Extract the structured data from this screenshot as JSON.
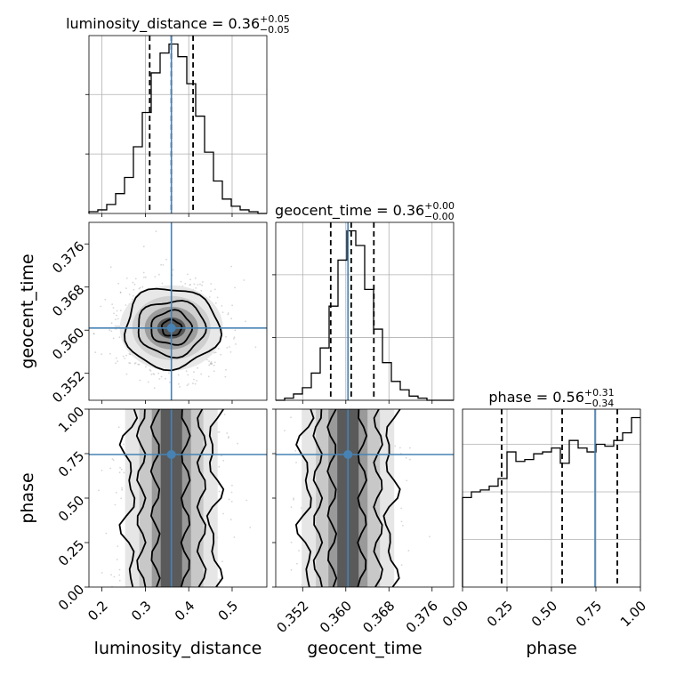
{
  "chart_data": {
    "type": "corner",
    "colors": {
      "truth": "#4682b4",
      "line": "#000000",
      "grid": "#b0b0b0"
    },
    "parameters": [
      {
        "name": "luminosity_distance",
        "title": {
          "prefix": "luminosity_distance = 0.36",
          "plus": "+0.05",
          "minus": "−0.05"
        },
        "range": [
          0.17,
          0.58
        ],
        "ticks": [
          0.2,
          0.3,
          0.4,
          0.5
        ],
        "tick_labels": [
          "0.2",
          "0.3",
          "0.4",
          "0.5"
        ],
        "truth": 0.36,
        "quantiles": [
          0.31,
          0.36,
          0.41
        ],
        "hist_edges_start": 0.17,
        "hist_bin_width": 0.0205,
        "hist_counts": [
          1,
          2,
          5,
          11,
          20,
          37,
          56,
          78,
          89,
          94,
          87,
          72,
          54,
          34,
          18,
          8,
          4,
          2,
          1,
          0
        ]
      },
      {
        "name": "geocent_time",
        "title": {
          "prefix": "geocent_time = 0.36",
          "plus": "+0.00",
          "minus": "−0.00"
        },
        "range": [
          0.347,
          0.38
        ],
        "ticks": [
          0.352,
          0.36,
          0.368,
          0.376
        ],
        "tick_labels": [
          "0.352",
          "0.360",
          "0.368",
          "0.376"
        ],
        "truth": 0.3604,
        "quantiles": [
          0.3572,
          0.361,
          0.3652
        ],
        "hist_edges_start": 0.347,
        "hist_bin_width": 0.00165,
        "hist_counts": [
          0,
          1,
          3,
          6,
          13,
          25,
          45,
          67,
          81,
          74,
          53,
          34,
          18,
          9,
          5,
          2,
          1,
          0,
          0,
          0
        ]
      },
      {
        "name": "phase",
        "title": {
          "prefix": "phase = 0.56",
          "plus": "+0.31",
          "minus": "−0.34"
        },
        "range": [
          0.0,
          1.0
        ],
        "ticks": [
          0.0,
          0.25,
          0.5,
          0.75,
          1.0
        ],
        "tick_labels": [
          "0.00",
          "0.25",
          "0.50",
          "0.75",
          "1.00"
        ],
        "truth": 0.745,
        "quantiles": [
          0.22,
          0.56,
          0.87
        ],
        "hist_edges_start": 0.0,
        "hist_bin_width": 0.05,
        "hist_counts": [
          47,
          50,
          51,
          53,
          57,
          71,
          66,
          67,
          70,
          71,
          73,
          65,
          77,
          73,
          71,
          75,
          74,
          77,
          81,
          89
        ]
      }
    ]
  }
}
